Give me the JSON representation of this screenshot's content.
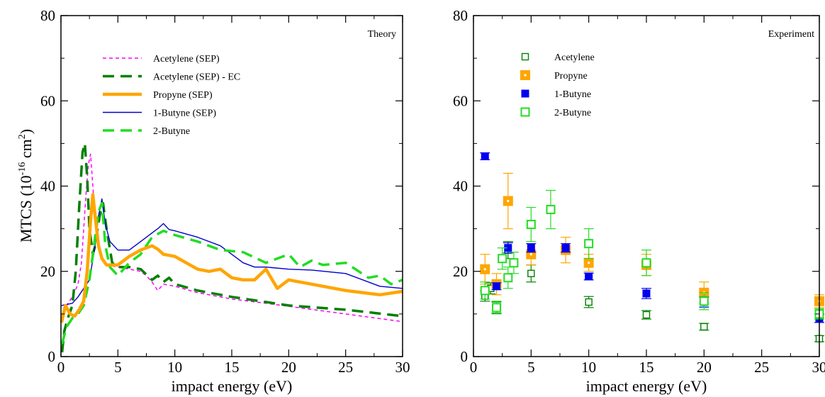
{
  "chart_data": [
    {
      "type": "line",
      "panel": "left",
      "corner_label": "Theory",
      "xlabel": "impact energy (eV)",
      "ylabel": "MTCS (10",
      "ylabel_exp": "-16",
      "ylabel_unit": " cm",
      "ylabel_unit_exp": "2",
      "ylabel_close": ")",
      "xlim": [
        0,
        30
      ],
      "ylim": [
        0,
        80
      ],
      "xticks": [
        0,
        5,
        10,
        15,
        20,
        25,
        30
      ],
      "yticks": [
        0,
        20,
        40,
        60,
        80
      ],
      "legend_position": "upper-left",
      "series": [
        {
          "name": "Acetylene (SEP)",
          "color": "#ff00ff",
          "style": "dashed-short",
          "points": [
            [
              0.1,
              9
            ],
            [
              0.5,
              12
            ],
            [
              1.0,
              14
            ],
            [
              1.5,
              17
            ],
            [
              1.8,
              22
            ],
            [
              2.0,
              30
            ],
            [
              2.2,
              38
            ],
            [
              2.4,
              45
            ],
            [
              2.6,
              47.5
            ],
            [
              2.8,
              40
            ],
            [
              3.0,
              32
            ],
            [
              3.3,
              26
            ],
            [
              3.6,
              23
            ],
            [
              4.0,
              21.5
            ],
            [
              5.0,
              21
            ],
            [
              6.0,
              20.5
            ],
            [
              7.0,
              20
            ],
            [
              7.5,
              19
            ],
            [
              8.0,
              17.5
            ],
            [
              8.5,
              15.5
            ],
            [
              9.0,
              17
            ],
            [
              10,
              16.5
            ],
            [
              12,
              15
            ],
            [
              15,
              13.5
            ],
            [
              18,
              12.5
            ],
            [
              20,
              11.8
            ],
            [
              25,
              10
            ],
            [
              30,
              8.2
            ]
          ]
        },
        {
          "name": "Acetylene (SEP) - EC",
          "color": "#008000",
          "style": "dashed-long",
          "points": [
            [
              0.1,
              1
            ],
            [
              0.3,
              6
            ],
            [
              0.6,
              9
            ],
            [
              1.0,
              12
            ],
            [
              1.3,
              20
            ],
            [
              1.6,
              35
            ],
            [
              1.9,
              48
            ],
            [
              2.1,
              50
            ],
            [
              2.3,
              42
            ],
            [
              2.5,
              30
            ],
            [
              2.8,
              24
            ],
            [
              3.0,
              26
            ],
            [
              3.4,
              33
            ],
            [
              3.7,
              36
            ],
            [
              4.0,
              30
            ],
            [
              4.5,
              22
            ],
            [
              5.0,
              21
            ],
            [
              6.0,
              21
            ],
            [
              7.0,
              20.5
            ],
            [
              8.0,
              18
            ],
            [
              8.5,
              19
            ],
            [
              9.0,
              17.5
            ],
            [
              9.5,
              18.5
            ],
            [
              10,
              17
            ],
            [
              12,
              15.5
            ],
            [
              15,
              14
            ],
            [
              18,
              12.8
            ],
            [
              20,
              12
            ],
            [
              25,
              11
            ],
            [
              30,
              9.5
            ]
          ]
        },
        {
          "name": "Propyne (SEP)",
          "color": "#ffa500",
          "style": "solid-thick",
          "points": [
            [
              0.05,
              8
            ],
            [
              0.4,
              12
            ],
            [
              0.8,
              10
            ],
            [
              1.2,
              9.5
            ],
            [
              1.6,
              11
            ],
            [
              2.0,
              13
            ],
            [
              2.3,
              20
            ],
            [
              2.6,
              32
            ],
            [
              2.8,
              38
            ],
            [
              3.0,
              33
            ],
            [
              3.3,
              26
            ],
            [
              3.6,
              23
            ],
            [
              4.0,
              21.5
            ],
            [
              5.0,
              21.5
            ],
            [
              6.0,
              23.5
            ],
            [
              7.0,
              25
            ],
            [
              8.0,
              26
            ],
            [
              8.5,
              25.2
            ],
            [
              9.0,
              24
            ],
            [
              10,
              23.5
            ],
            [
              11,
              22
            ],
            [
              12,
              20.5
            ],
            [
              13,
              20
            ],
            [
              14,
              20.5
            ],
            [
              15,
              18.5
            ],
            [
              16,
              18
            ],
            [
              17,
              18
            ],
            [
              18,
              20.5
            ],
            [
              19,
              16
            ],
            [
              20,
              18
            ],
            [
              22,
              17
            ],
            [
              25,
              15.5
            ],
            [
              28,
              14.5
            ],
            [
              30,
              15.3
            ]
          ]
        },
        {
          "name": "1-Butyne (SEP)",
          "color": "#0000cc",
          "style": "solid-thin",
          "points": [
            [
              0.05,
              12
            ],
            [
              1.0,
              12.5
            ],
            [
              1.5,
              14
            ],
            [
              2.0,
              16
            ],
            [
              2.5,
              18
            ],
            [
              3.0,
              26
            ],
            [
              3.3,
              33
            ],
            [
              3.6,
              37
            ],
            [
              3.9,
              31
            ],
            [
              4.3,
              27
            ],
            [
              5.0,
              25
            ],
            [
              6.0,
              25
            ],
            [
              7.0,
              27
            ],
            [
              8.0,
              29
            ],
            [
              8.5,
              30
            ],
            [
              9.0,
              31.2
            ],
            [
              9.5,
              29.8
            ],
            [
              10,
              29.5
            ],
            [
              12,
              28
            ],
            [
              14,
              26
            ],
            [
              16,
              22
            ],
            [
              17,
              21
            ],
            [
              18,
              21
            ],
            [
              20,
              20.5
            ],
            [
              22,
              20.3
            ],
            [
              25,
              19.5
            ],
            [
              28,
              16.5
            ],
            [
              30,
              16
            ]
          ]
        },
        {
          "name": "2-Butyne",
          "color": "#22dd22",
          "style": "dashed-long",
          "points": [
            [
              0.1,
              3
            ],
            [
              0.5,
              7
            ],
            [
              1.0,
              9
            ],
            [
              1.5,
              10
            ],
            [
              2.0,
              12
            ],
            [
              2.5,
              18
            ],
            [
              3.0,
              28
            ],
            [
              3.3,
              34
            ],
            [
              3.6,
              36
            ],
            [
              3.9,
              26
            ],
            [
              4.3,
              21
            ],
            [
              5.0,
              19
            ],
            [
              6.0,
              22
            ],
            [
              7.0,
              24
            ],
            [
              8.0,
              28
            ],
            [
              9.0,
              29.5
            ],
            [
              10,
              28.5
            ],
            [
              12,
              27
            ],
            [
              14,
              25
            ],
            [
              16,
              24.5
            ],
            [
              18,
              22
            ],
            [
              20,
              24
            ],
            [
              21,
              21
            ],
            [
              22,
              22.5
            ],
            [
              23,
              21.5
            ],
            [
              25,
              22
            ],
            [
              27,
              18.5
            ],
            [
              28,
              19
            ],
            [
              29,
              17
            ],
            [
              30,
              18
            ]
          ]
        }
      ]
    },
    {
      "type": "scatter",
      "panel": "right",
      "corner_label": "Experiment",
      "xlabel": "impact energy (eV)",
      "xlim": [
        0,
        30
      ],
      "ylim": [
        0,
        80
      ],
      "xticks": [
        0,
        5,
        10,
        15,
        20,
        25,
        30
      ],
      "yticks": [
        0,
        20,
        40,
        60,
        80
      ],
      "legend_position": "upper-left",
      "series": [
        {
          "name": "Acetylene",
          "color": "#008000",
          "marker": "open-square-small",
          "points": [
            [
              1.0,
              14.2,
              1.2
            ],
            [
              1.5,
              16.0,
              1.3
            ],
            [
              2.0,
              11.5,
              1.3
            ],
            [
              3.0,
              25.0,
              2.0
            ],
            [
              5.0,
              19.5,
              2.0
            ],
            [
              10,
              12.8,
              1.3
            ],
            [
              15,
              9.8,
              1.0
            ],
            [
              20,
              7.0,
              0.8
            ],
            [
              30,
              4.2,
              0.7
            ]
          ]
        },
        {
          "name": "Propyne",
          "color": "#ffa500",
          "marker": "square-dot",
          "points": [
            [
              1.0,
              20.5,
              3.5
            ],
            [
              2.0,
              17.0,
              2.5
            ],
            [
              3.0,
              36.5,
              6.5
            ],
            [
              5.0,
              24.0,
              2.5
            ],
            [
              8.0,
              25.0,
              3.0
            ],
            [
              10,
              22.0,
              2.0
            ],
            [
              15,
              21.5,
              2.5
            ],
            [
              20,
              15.0,
              2.5
            ],
            [
              30,
              13.0,
              1.5
            ]
          ]
        },
        {
          "name": "1-Butyne",
          "color": "#0000ee",
          "marker": "filled-square",
          "points": [
            [
              1.0,
              47.0,
              0.8
            ],
            [
              2.0,
              16.5,
              0.8
            ],
            [
              3.0,
              25.5,
              1.2
            ],
            [
              5.0,
              25.5,
              1.0
            ],
            [
              8.0,
              25.5,
              1.0
            ],
            [
              10,
              18.8,
              0.8
            ],
            [
              15,
              14.8,
              1.2
            ],
            [
              20,
              12.8,
              1.2
            ],
            [
              30,
              9.0,
              1.0
            ]
          ]
        },
        {
          "name": "2-Butyne",
          "color": "#22dd22",
          "marker": "open-square",
          "points": [
            [
              1.0,
              15.5,
              2.0
            ],
            [
              2.0,
              11.5,
              1.5
            ],
            [
              2.5,
              23.0,
              2.5
            ],
            [
              3.0,
              18.5,
              2.5
            ],
            [
              3.5,
              22.0,
              2.5
            ],
            [
              5.0,
              31.0,
              4.0
            ],
            [
              6.7,
              34.5,
              4.5
            ],
            [
              10,
              26.5,
              3.5
            ],
            [
              15,
              22.0,
              3.0
            ],
            [
              20,
              13.0,
              2.0
            ],
            [
              30,
              10.0,
              1.2
            ]
          ]
        }
      ]
    }
  ]
}
